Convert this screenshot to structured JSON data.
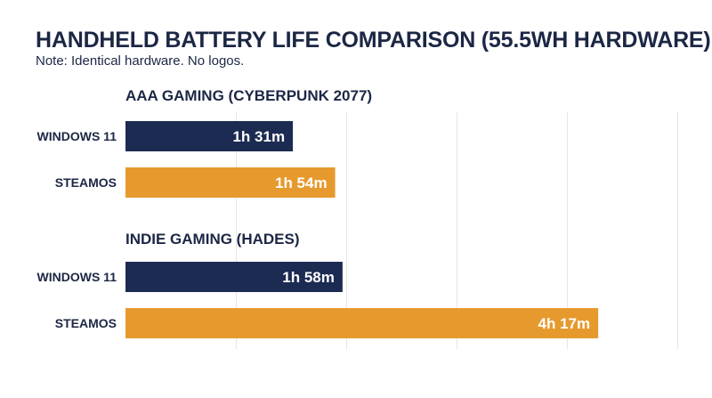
{
  "title": "HANDHELD BATTERY LIFE COMPARISON (55.5WH HARDWARE)",
  "subtitle": "Note: Identical hardware. No logos.",
  "colors": {
    "windows": "#1c2b52",
    "steamos": "#e69a2e",
    "text": "#1c2745",
    "grid": "#e6e6e6"
  },
  "chart_data": {
    "type": "bar",
    "orientation": "horizontal",
    "unit": "minutes",
    "xlim": [
      0,
      300
    ],
    "grid": true,
    "groups": [
      {
        "name": "AAA GAMING (CYBERPUNK 2077)",
        "bars": [
          {
            "category": "WINDOWS 11",
            "value": 91,
            "label": "1h 31m",
            "color": "#1c2b52"
          },
          {
            "category": "STEAMOS",
            "value": 114,
            "label": "1h 54m",
            "color": "#e69a2e"
          }
        ]
      },
      {
        "name": "INDIE GAMING (HADES)",
        "bars": [
          {
            "category": "WINDOWS 11",
            "value": 118,
            "label": "1h 58m",
            "color": "#1c2b52"
          },
          {
            "category": "STEAMOS",
            "value": 257,
            "label": "4h 17m",
            "color": "#e69a2e"
          }
        ]
      }
    ]
  }
}
